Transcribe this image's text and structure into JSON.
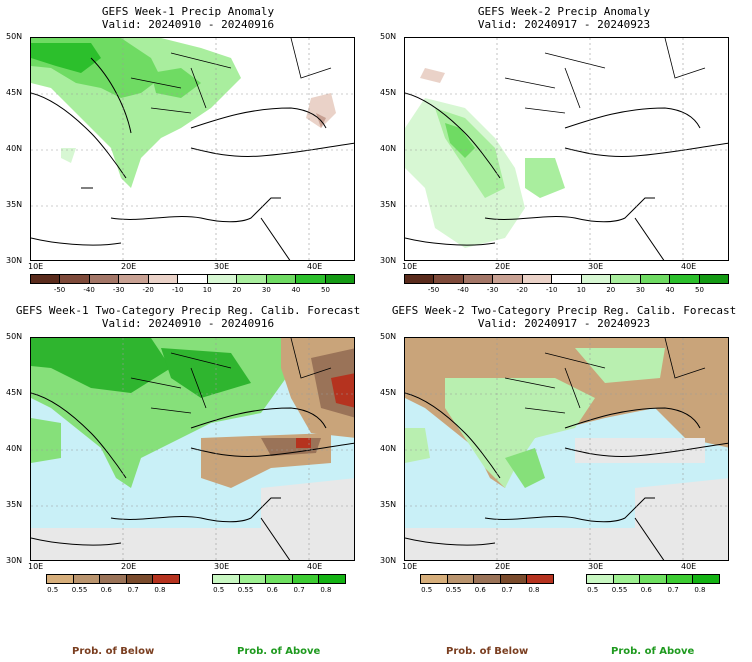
{
  "panels": [
    {
      "title": "GEFS Week-1 Precip Anomaly",
      "valid": "Valid: 20240910 - 20240916"
    },
    {
      "title": "GEFS Week-2 Precip Anomaly",
      "valid": "Valid: 20240917 - 20240923"
    },
    {
      "title": "GEFS Week-1 Two-Category Precip Reg. Calib. Forecast",
      "valid": "Valid: 20240910 - 20240916"
    },
    {
      "title": "GEFS Week-2 Two-Category Precip Reg. Calib. Forecast",
      "valid": "Valid: 20240917 - 20240923"
    }
  ],
  "lat_labels": [
    "50N",
    "45N",
    "40N",
    "35N",
    "30N"
  ],
  "lon_labels": [
    "10E",
    "20E",
    "30E",
    "40E"
  ],
  "anomaly_colorbar": {
    "labels": [
      "-50",
      "-40",
      "-30",
      "-20",
      "-10",
      "10",
      "20",
      "30",
      "40",
      "50"
    ],
    "colors": [
      "#5a2b1c",
      "#7e4a3a",
      "#a37667",
      "#c8a193",
      "#ead2c8",
      "#ffffff",
      "#d7f7d3",
      "#a9ee9e",
      "#6fdb63",
      "#2cbf2c",
      "#149a14"
    ]
  },
  "prob_below_colorbar": {
    "labels": [
      "0.5",
      "0.55",
      "0.6",
      "0.7",
      "0.8"
    ],
    "colors": [
      "#d6ae7b",
      "#b9946e",
      "#9a7358",
      "#7a4b2c",
      "#b5331f"
    ]
  },
  "prob_above_colorbar": {
    "labels": [
      "0.5",
      "0.55",
      "0.6",
      "0.7",
      "0.8"
    ],
    "colors": [
      "#c8f7c2",
      "#9ef092",
      "#6fe061",
      "#3dcc33",
      "#14b314"
    ]
  },
  "legend": {
    "below": "Prob. of Below",
    "above": "Prob. of Above"
  },
  "colors": {
    "ocean_prob": "#c9f0f7",
    "nodata_gray": "#e8e8e8",
    "brown_prob": "#c9a47a",
    "green_light": "#b9efb0",
    "green_mid": "#86e07a",
    "green_dark": "#2fb52f",
    "red_prob": "#b5331f"
  }
}
